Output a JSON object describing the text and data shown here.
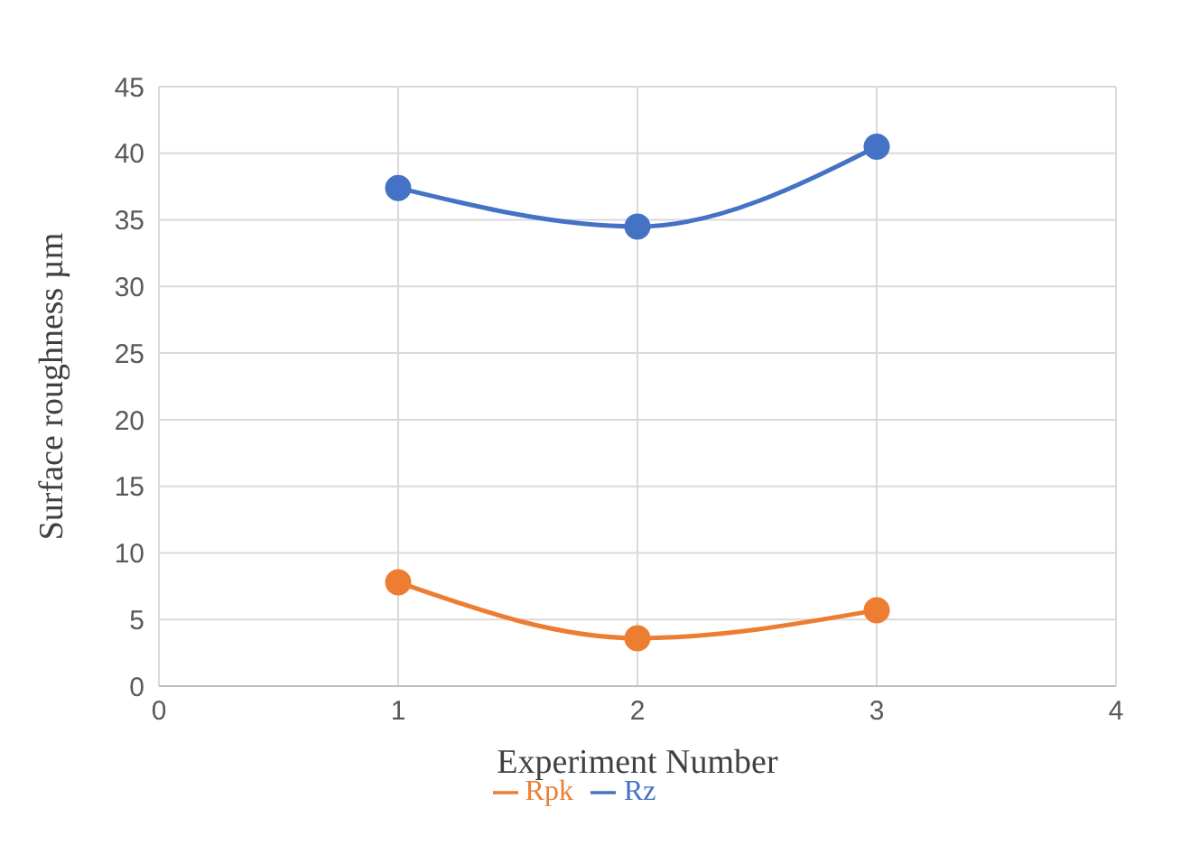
{
  "chart_data": {
    "type": "line",
    "xlabel": "Experiment Number",
    "ylabel": "Surface roughness µm",
    "x": [
      1,
      2,
      3
    ],
    "series": [
      {
        "name": "Rz",
        "color": "#4472c4",
        "values": [
          37.4,
          34.5,
          40.5
        ]
      },
      {
        "name": "Rpk",
        "color": "#ed7d31",
        "values": [
          7.8,
          3.6,
          5.7
        ]
      }
    ],
    "xlim": [
      0,
      4
    ],
    "xticks": [
      0,
      1,
      2,
      3,
      4
    ],
    "ylim": [
      0,
      45
    ],
    "yticks": [
      0,
      5,
      10,
      15,
      20,
      25,
      30,
      35,
      40,
      45
    ],
    "grid": true,
    "legend": "bottom",
    "marker": "circle",
    "line_style": "solid"
  }
}
